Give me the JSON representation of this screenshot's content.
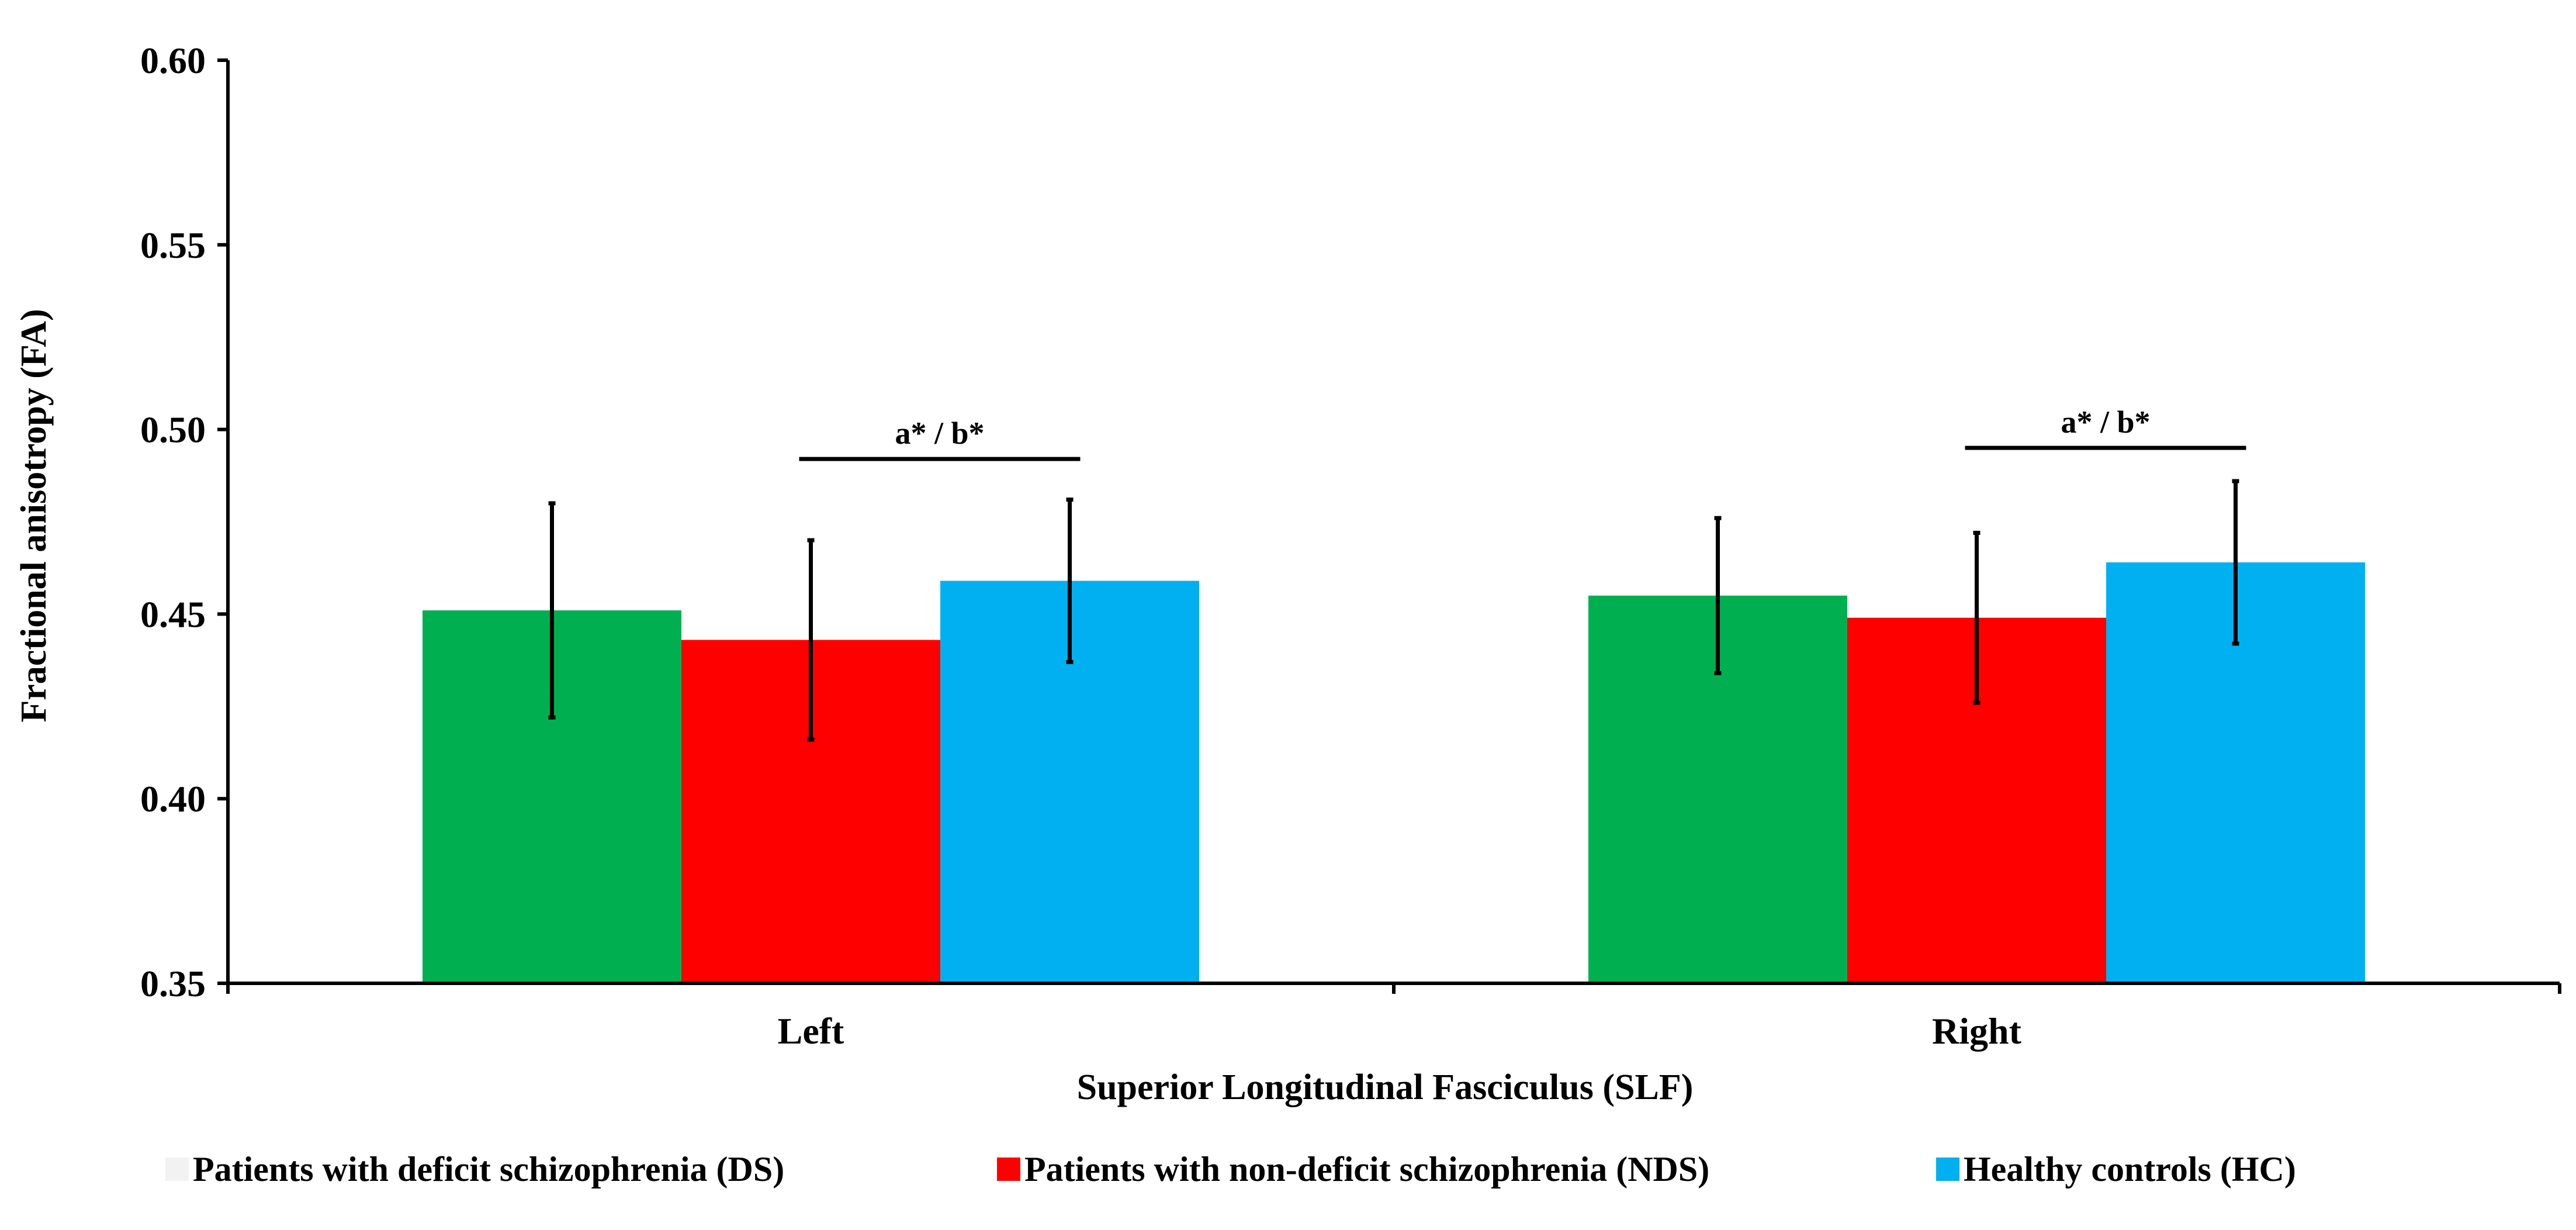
{
  "chart_data": {
    "type": "bar",
    "title": "",
    "xlabel": "Superior Longitudinal Fasciculus (SLF)",
    "ylabel": "Fractional anisotropy (FA)",
    "ylim": [
      0.35,
      0.6
    ],
    "yticks": [
      "0.35",
      "0.40",
      "0.45",
      "0.50",
      "0.55",
      "0.60"
    ],
    "ytick_values": [
      0.35,
      0.4,
      0.45,
      0.5,
      0.55,
      0.6
    ],
    "grid": false,
    "legend_position": "bottom",
    "categories": [
      "Left",
      "Right"
    ],
    "series": [
      {
        "name": "Patients with deficit schizophrenia (DS)",
        "color": "#00B050",
        "values": [
          0.451,
          0.455
        ],
        "errors": [
          0.029,
          0.021
        ]
      },
      {
        "name": "Patients with non-deficit schizophrenia (NDS)",
        "color": "#FF0000",
        "values": [
          0.443,
          0.449
        ],
        "errors": [
          0.027,
          0.023
        ]
      },
      {
        "name": "Healthy controls (HC)",
        "color": "#00B0F0",
        "values": [
          0.459,
          0.464
        ],
        "errors": [
          0.022,
          0.022
        ]
      }
    ],
    "annotations": [
      {
        "text": "a* / b*",
        "category": "Left",
        "from_series": 1,
        "to_series": 2,
        "y": 0.492
      },
      {
        "text": "a* / b*",
        "category": "Right",
        "from_series": 1,
        "to_series": 2,
        "y": 0.495
      }
    ]
  }
}
